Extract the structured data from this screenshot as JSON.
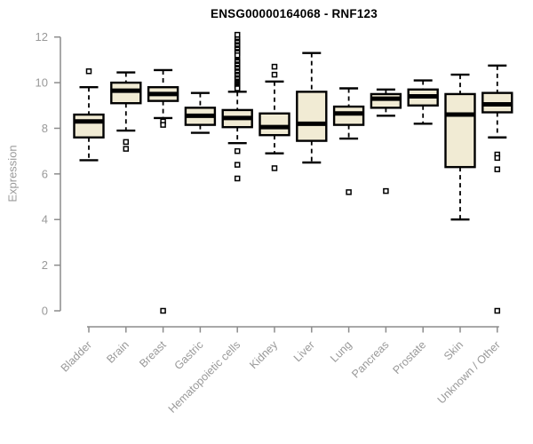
{
  "chart_data": {
    "type": "boxplot",
    "title": "ENSG00000164068 - RNF123",
    "ylabel": "Expression",
    "xlabel": "",
    "ylim": [
      0,
      12
    ],
    "yticks": [
      0,
      2,
      4,
      6,
      8,
      10,
      12
    ],
    "grid": false,
    "legend": "none",
    "categories": [
      "Bladder",
      "Brain",
      "Breast",
      "Gastric",
      "Hematopoietic cells",
      "Kidney",
      "Liver",
      "Lung",
      "Pancreas",
      "Prostate",
      "Skin",
      "Unknown / Other"
    ],
    "series": [
      {
        "category": "Bladder",
        "whisker_low": 6.6,
        "q1": 7.6,
        "median": 8.3,
        "q3": 8.6,
        "whisker_high": 9.8,
        "outliers": [
          10.5
        ]
      },
      {
        "category": "Brain",
        "whisker_low": 7.9,
        "q1": 9.1,
        "median": 9.65,
        "q3": 10.0,
        "whisker_high": 10.45,
        "outliers": [
          7.4,
          7.1
        ]
      },
      {
        "category": "Breast",
        "whisker_low": 8.45,
        "q1": 9.2,
        "median": 9.5,
        "q3": 9.8,
        "whisker_high": 10.55,
        "outliers": [
          8.3,
          8.15,
          0.0
        ]
      },
      {
        "category": "Gastric",
        "whisker_low": 7.8,
        "q1": 8.15,
        "median": 8.55,
        "q3": 8.9,
        "whisker_high": 9.55,
        "outliers": []
      },
      {
        "category": "Hematopoietic cells",
        "whisker_low": 7.35,
        "q1": 8.05,
        "median": 8.45,
        "q3": 8.8,
        "whisker_high": 9.6,
        "outliers": [
          12.1,
          11.9,
          11.8,
          11.75,
          11.65,
          11.6,
          11.5,
          11.45,
          11.35,
          11.3,
          11.2,
          10.95,
          10.9,
          10.8,
          10.75,
          10.65,
          10.6,
          10.5,
          10.45,
          10.35,
          10.3,
          10.2,
          10.15,
          10.05,
          10.0,
          9.95,
          9.9,
          9.85,
          9.8,
          9.75,
          7.0,
          6.4,
          5.8
        ]
      },
      {
        "category": "Kidney",
        "whisker_low": 6.9,
        "q1": 7.7,
        "median": 8.05,
        "q3": 8.65,
        "whisker_high": 10.05,
        "outliers": [
          10.7,
          10.35,
          6.25
        ]
      },
      {
        "category": "Liver",
        "whisker_low": 6.5,
        "q1": 7.45,
        "median": 8.2,
        "q3": 9.6,
        "whisker_high": 11.3,
        "outliers": []
      },
      {
        "category": "Lung",
        "whisker_low": 7.55,
        "q1": 8.15,
        "median": 8.65,
        "q3": 8.95,
        "whisker_high": 9.75,
        "outliers": [
          5.2
        ]
      },
      {
        "category": "Pancreas",
        "whisker_low": 8.55,
        "q1": 8.9,
        "median": 9.3,
        "q3": 9.5,
        "whisker_high": 9.7,
        "outliers": [
          5.25
        ]
      },
      {
        "category": "Prostate",
        "whisker_low": 8.2,
        "q1": 9.0,
        "median": 9.4,
        "q3": 9.7,
        "whisker_high": 10.1,
        "outliers": []
      },
      {
        "category": "Skin",
        "whisker_low": 4.0,
        "q1": 6.3,
        "median": 8.6,
        "q3": 9.5,
        "whisker_high": 10.35,
        "outliers": []
      },
      {
        "category": "Unknown / Other",
        "whisker_low": 7.6,
        "q1": 8.7,
        "median": 9.05,
        "q3": 9.55,
        "whisker_high": 10.75,
        "outliers": [
          6.85,
          6.7,
          6.2,
          0.0
        ]
      }
    ],
    "colors": {
      "box_fill": "#F1EBD4",
      "box_border": "#000000",
      "median": "#000000",
      "whisker": "#000000",
      "axis": "#8C8C8C",
      "tick_label": "#999999",
      "title": "#000000",
      "background": "#FFFFFF"
    }
  }
}
